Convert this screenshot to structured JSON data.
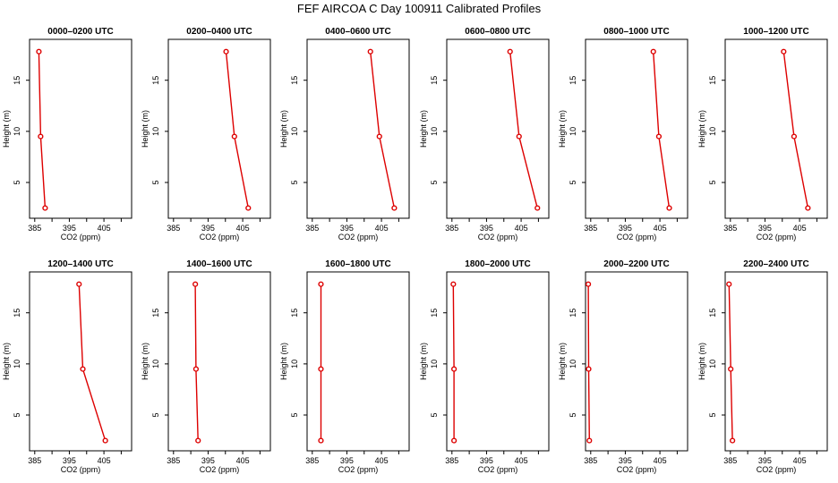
{
  "title": "FEF AIRCOA C  Day 100911  Calibrated Profiles",
  "colors": {
    "profile": "#dd0000",
    "axis": "#000000"
  },
  "chart_data": [
    {
      "type": "line",
      "title": "0000–0200 UTC",
      "xlabel": "CO2 (ppm)",
      "ylabel": "Height (m)",
      "xlim": [
        383.5,
        413
      ],
      "ylim": [
        1.5,
        19
      ],
      "xticks": [
        385,
        390,
        395,
        400,
        405,
        410
      ],
      "xtick_labels": [
        "385",
        "",
        "395",
        "",
        "405",
        ""
      ],
      "yticks": [
        5,
        10,
        15
      ],
      "x": [
        386.2,
        386.7,
        388.0
      ],
      "y": [
        17.8,
        9.5,
        2.5
      ]
    },
    {
      "type": "line",
      "title": "0200–0400 UTC",
      "xlabel": "CO2 (ppm)",
      "ylabel": "Height (m)",
      "xlim": [
        383.5,
        413
      ],
      "ylim": [
        1.5,
        19
      ],
      "xticks": [
        385,
        390,
        395,
        400,
        405,
        410
      ],
      "xtick_labels": [
        "385",
        "",
        "395",
        "",
        "405",
        ""
      ],
      "yticks": [
        5,
        10,
        15
      ],
      "x": [
        400.2,
        402.6,
        406.6
      ],
      "y": [
        17.8,
        9.5,
        2.5
      ]
    },
    {
      "type": "line",
      "title": "0400–0600 UTC",
      "xlabel": "CO2 (ppm)",
      "ylabel": "Height (m)",
      "xlim": [
        383.5,
        413
      ],
      "ylim": [
        1.5,
        19
      ],
      "xticks": [
        385,
        390,
        395,
        400,
        405,
        410
      ],
      "xtick_labels": [
        "385",
        "",
        "395",
        "",
        "405",
        ""
      ],
      "yticks": [
        5,
        10,
        15
      ],
      "x": [
        401.8,
        404.4,
        408.7
      ],
      "y": [
        17.8,
        9.5,
        2.5
      ]
    },
    {
      "type": "line",
      "title": "0600–0800 UTC",
      "xlabel": "CO2 (ppm)",
      "ylabel": "Height (m)",
      "xlim": [
        383.5,
        413
      ],
      "ylim": [
        1.5,
        19
      ],
      "xticks": [
        385,
        390,
        395,
        400,
        405,
        410
      ],
      "xtick_labels": [
        "385",
        "",
        "395",
        "",
        "405",
        ""
      ],
      "yticks": [
        5,
        10,
        15
      ],
      "x": [
        401.8,
        404.4,
        409.7
      ],
      "y": [
        17.8,
        9.5,
        2.5
      ]
    },
    {
      "type": "line",
      "title": "0800–1000 UTC",
      "xlabel": "CO2 (ppm)",
      "ylabel": "Height (m)",
      "xlim": [
        383.5,
        413
      ],
      "ylim": [
        1.5,
        19
      ],
      "xticks": [
        385,
        390,
        395,
        400,
        405,
        410
      ],
      "xtick_labels": [
        "385",
        "",
        "395",
        "",
        "405",
        ""
      ],
      "yticks": [
        5,
        10,
        15
      ],
      "x": [
        403.1,
        404.7,
        407.7
      ],
      "y": [
        17.8,
        9.5,
        2.5
      ]
    },
    {
      "type": "line",
      "title": "1000–1200 UTC",
      "xlabel": "CO2 (ppm)",
      "ylabel": "Height (m)",
      "xlim": [
        383.5,
        413
      ],
      "ylim": [
        1.5,
        19
      ],
      "xticks": [
        385,
        390,
        395,
        400,
        405,
        410
      ],
      "xtick_labels": [
        "385",
        "",
        "395",
        "",
        "405",
        ""
      ],
      "yticks": [
        5,
        10,
        15
      ],
      "x": [
        400.4,
        403.4,
        407.4
      ],
      "y": [
        17.8,
        9.5,
        2.5
      ]
    },
    {
      "type": "line",
      "title": "1200–1400 UTC",
      "xlabel": "CO2 (ppm)",
      "ylabel": "Height (m)",
      "xlim": [
        383.5,
        413
      ],
      "ylim": [
        1.5,
        19
      ],
      "xticks": [
        385,
        390,
        395,
        400,
        405,
        410
      ],
      "xtick_labels": [
        "385",
        "",
        "395",
        "",
        "405",
        ""
      ],
      "yticks": [
        5,
        10,
        15
      ],
      "x": [
        397.8,
        398.9,
        405.4
      ],
      "y": [
        17.8,
        9.5,
        2.5
      ]
    },
    {
      "type": "line",
      "title": "1400–1600 UTC",
      "xlabel": "CO2 (ppm)",
      "ylabel": "Height (m)",
      "xlim": [
        383.5,
        413
      ],
      "ylim": [
        1.5,
        19
      ],
      "xticks": [
        385,
        390,
        395,
        400,
        405,
        410
      ],
      "xtick_labels": [
        "385",
        "",
        "395",
        "",
        "405",
        ""
      ],
      "yticks": [
        5,
        10,
        15
      ],
      "x": [
        391.3,
        391.5,
        392.1
      ],
      "y": [
        17.8,
        9.5,
        2.5
      ]
    },
    {
      "type": "line",
      "title": "1600–1800 UTC",
      "xlabel": "CO2 (ppm)",
      "ylabel": "Height (m)",
      "xlim": [
        383.5,
        413
      ],
      "ylim": [
        1.5,
        19
      ],
      "xticks": [
        385,
        390,
        395,
        400,
        405,
        410
      ],
      "xtick_labels": [
        "385",
        "",
        "395",
        "",
        "405",
        ""
      ],
      "yticks": [
        5,
        10,
        15
      ],
      "x": [
        387.5,
        387.5,
        387.5
      ],
      "y": [
        17.8,
        9.5,
        2.5
      ]
    },
    {
      "type": "line",
      "title": "1800–2000 UTC",
      "xlabel": "CO2 (ppm)",
      "ylabel": "Height (m)",
      "xlim": [
        383.5,
        413
      ],
      "ylim": [
        1.5,
        19
      ],
      "xticks": [
        385,
        390,
        395,
        400,
        405,
        410
      ],
      "xtick_labels": [
        "385",
        "",
        "395",
        "",
        "405",
        ""
      ],
      "yticks": [
        5,
        10,
        15
      ],
      "x": [
        385.4,
        385.6,
        385.6
      ],
      "y": [
        17.8,
        9.5,
        2.5
      ]
    },
    {
      "type": "line",
      "title": "2000–2200 UTC",
      "xlabel": "CO2 (ppm)",
      "ylabel": "Height (m)",
      "xlim": [
        383.5,
        413
      ],
      "ylim": [
        1.5,
        19
      ],
      "xticks": [
        385,
        390,
        395,
        400,
        405,
        410
      ],
      "xtick_labels": [
        "385",
        "",
        "395",
        "",
        "405",
        ""
      ],
      "yticks": [
        5,
        10,
        15
      ],
      "x": [
        384.3,
        384.4,
        384.6
      ],
      "y": [
        17.8,
        9.5,
        2.5
      ]
    },
    {
      "type": "line",
      "title": "2200–2400 UTC",
      "xlabel": "CO2 (ppm)",
      "ylabel": "Height (m)",
      "xlim": [
        383.5,
        413
      ],
      "ylim": [
        1.5,
        19
      ],
      "xticks": [
        385,
        390,
        395,
        400,
        405,
        410
      ],
      "xtick_labels": [
        "385",
        "",
        "395",
        "",
        "405",
        ""
      ],
      "yticks": [
        5,
        10,
        15
      ],
      "x": [
        384.6,
        385.1,
        385.6
      ],
      "y": [
        17.8,
        9.5,
        2.5
      ]
    }
  ]
}
